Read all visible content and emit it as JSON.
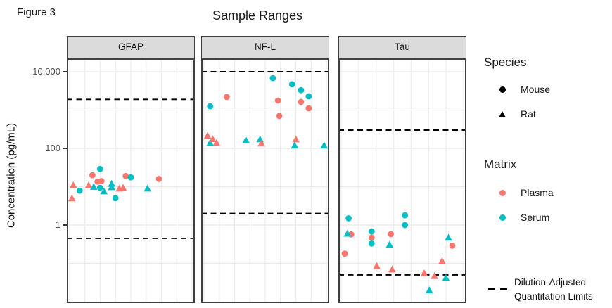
{
  "figure_label": "Figure 3",
  "title": "Sample Ranges",
  "y_axis": {
    "label": "Concentration (pg/mL)",
    "ticks": [
      {
        "label": "10,000",
        "value": 10000
      },
      {
        "label": "100",
        "value": 100
      },
      {
        "label": "1",
        "value": 1
      }
    ]
  },
  "colors": {
    "plasma": "#F8766D",
    "serum": "#00BFC4",
    "limit_line": "#000000",
    "strip_bg": "#DBDBDB",
    "panel_border": "#404040",
    "grid": "#E8E8E8"
  },
  "legend": {
    "species": {
      "title": "Species",
      "items": [
        {
          "label": "Mouse",
          "marker": "circle"
        },
        {
          "label": "Rat",
          "marker": "triangle"
        }
      ]
    },
    "matrix": {
      "title": "Matrix",
      "items": [
        {
          "label": "Plasma",
          "color": "#F8766D"
        },
        {
          "label": "Serum",
          "color": "#00BFC4"
        }
      ]
    },
    "limits": {
      "label_line1": "Dilution-Adjusted",
      "label_line2": "Quantitation Limits",
      "marker": "dashed-line"
    }
  },
  "chart_data": {
    "type": "scatter",
    "title": "Sample Ranges",
    "ylabel": "Concentration (pg/mL)",
    "y_scale": "log10",
    "ylim": [
      0.009,
      16000
    ],
    "x_axis": "unlabeled samples (jittered)",
    "grid": true,
    "legend_position": "right",
    "shape_by": {
      "Mouse": "circle",
      "Rat": "triangle"
    },
    "color_by": {
      "Plasma": "#F8766D",
      "Serum": "#00BFC4"
    },
    "facets": [
      {
        "label": "GFAP",
        "upper_limit": 1900,
        "lower_limit": 0.45,
        "points": [
          {
            "x": 0.04,
            "conc": 5.0,
            "species": "Rat",
            "matrix": "Plasma"
          },
          {
            "x": 0.05,
            "conc": 11,
            "species": "Rat",
            "matrix": "Plasma"
          },
          {
            "x": 0.1,
            "conc": 7.9,
            "species": "Mouse",
            "matrix": "Serum"
          },
          {
            "x": 0.17,
            "conc": 11,
            "species": "Rat",
            "matrix": "Plasma"
          },
          {
            "x": 0.2,
            "conc": 20,
            "species": "Mouse",
            "matrix": "Plasma"
          },
          {
            "x": 0.21,
            "conc": 10,
            "species": "Rat",
            "matrix": "Serum"
          },
          {
            "x": 0.24,
            "conc": 13.5,
            "species": "Mouse",
            "matrix": "Plasma"
          },
          {
            "x": 0.27,
            "conc": 14,
            "species": "Mouse",
            "matrix": "Plasma"
          },
          {
            "x": 0.26,
            "conc": 29,
            "species": "Mouse",
            "matrix": "Serum"
          },
          {
            "x": 0.26,
            "conc": 9.4,
            "species": "Mouse",
            "matrix": "Serum"
          },
          {
            "x": 0.29,
            "conc": 7.6,
            "species": "Rat",
            "matrix": "Serum"
          },
          {
            "x": 0.35,
            "conc": 12,
            "species": "Rat",
            "matrix": "Serum"
          },
          {
            "x": 0.35,
            "conc": 9.8,
            "species": "Rat",
            "matrix": "Serum"
          },
          {
            "x": 0.38,
            "conc": 5.0,
            "species": "Mouse",
            "matrix": "Serum"
          },
          {
            "x": 0.41,
            "conc": 9.0,
            "species": "Rat",
            "matrix": "Plasma"
          },
          {
            "x": 0.44,
            "conc": 9.4,
            "species": "Rat",
            "matrix": "Plasma"
          },
          {
            "x": 0.46,
            "conc": 19,
            "species": "Mouse",
            "matrix": "Plasma"
          },
          {
            "x": 0.5,
            "conc": 17.5,
            "species": "Mouse",
            "matrix": "Serum"
          },
          {
            "x": 0.63,
            "conc": 9.0,
            "species": "Rat",
            "matrix": "Serum"
          },
          {
            "x": 0.72,
            "conc": 16,
            "species": "Mouse",
            "matrix": "Plasma"
          }
        ]
      },
      {
        "label": "NF-L",
        "upper_limit": 10000,
        "lower_limit": 2.0,
        "points": [
          {
            "x": 0.07,
            "conc": 1260,
            "species": "Mouse",
            "matrix": "Serum"
          },
          {
            "x": 0.2,
            "conc": 2200,
            "species": "Mouse",
            "matrix": "Plasma"
          },
          {
            "x": 0.05,
            "conc": 215,
            "species": "Rat",
            "matrix": "Plasma"
          },
          {
            "x": 0.07,
            "conc": 140,
            "species": "Rat",
            "matrix": "Serum"
          },
          {
            "x": 0.09,
            "conc": 175,
            "species": "Rat",
            "matrix": "Plasma"
          },
          {
            "x": 0.12,
            "conc": 140,
            "species": "Rat",
            "matrix": "Plasma"
          },
          {
            "x": 0.35,
            "conc": 165,
            "species": "Rat",
            "matrix": "Serum"
          },
          {
            "x": 0.46,
            "conc": 173,
            "species": "Rat",
            "matrix": "Serum"
          },
          {
            "x": 0.47,
            "conc": 135,
            "species": "Rat",
            "matrix": "Plasma"
          },
          {
            "x": 0.56,
            "conc": 6800,
            "species": "Mouse",
            "matrix": "Serum"
          },
          {
            "x": 0.6,
            "conc": 1770,
            "species": "Mouse",
            "matrix": "Plasma"
          },
          {
            "x": 0.61,
            "conc": 700,
            "species": "Mouse",
            "matrix": "Plasma"
          },
          {
            "x": 0.71,
            "conc": 4700,
            "species": "Mouse",
            "matrix": "Serum"
          },
          {
            "x": 0.78,
            "conc": 3300,
            "species": "Mouse",
            "matrix": "Serum"
          },
          {
            "x": 0.78,
            "conc": 1630,
            "species": "Mouse",
            "matrix": "Plasma"
          },
          {
            "x": 0.84,
            "conc": 2280,
            "species": "Mouse",
            "matrix": "Serum"
          },
          {
            "x": 0.84,
            "conc": 1110,
            "species": "Mouse",
            "matrix": "Plasma"
          },
          {
            "x": 0.74,
            "conc": 173,
            "species": "Rat",
            "matrix": "Plasma"
          },
          {
            "x": 0.73,
            "conc": 120,
            "species": "Rat",
            "matrix": "Serum"
          },
          {
            "x": 0.96,
            "conc": 120,
            "species": "Rat",
            "matrix": "Serum"
          }
        ]
      },
      {
        "label": "Tau",
        "upper_limit": 300,
        "lower_limit": 0.05,
        "points": [
          {
            "x": 0.05,
            "conc": 0.18,
            "species": "Mouse",
            "matrix": "Plasma"
          },
          {
            "x": 0.08,
            "conc": 1.5,
            "species": "Mouse",
            "matrix": "Serum"
          },
          {
            "x": 0.1,
            "conc": 0.57,
            "species": "Mouse",
            "matrix": "Plasma"
          },
          {
            "x": 0.07,
            "conc": 0.6,
            "species": "Rat",
            "matrix": "Serum"
          },
          {
            "x": 0.26,
            "conc": 0.68,
            "species": "Mouse",
            "matrix": "Serum"
          },
          {
            "x": 0.26,
            "conc": 0.47,
            "species": "Mouse",
            "matrix": "Plasma"
          },
          {
            "x": 0.26,
            "conc": 0.33,
            "species": "Mouse",
            "matrix": "Serum"
          },
          {
            "x": 0.3,
            "conc": 0.086,
            "species": "Rat",
            "matrix": "Plasma"
          },
          {
            "x": 0.41,
            "conc": 0.58,
            "species": "Mouse",
            "matrix": "Plasma"
          },
          {
            "x": 0.4,
            "conc": 0.31,
            "species": "Rat",
            "matrix": "Serum"
          },
          {
            "x": 0.42,
            "conc": 0.07,
            "species": "Rat",
            "matrix": "Plasma"
          },
          {
            "x": 0.52,
            "conc": 1.8,
            "species": "Mouse",
            "matrix": "Serum"
          },
          {
            "x": 0.52,
            "conc": 1.0,
            "species": "Mouse",
            "matrix": "Serum"
          },
          {
            "x": 0.67,
            "conc": 0.056,
            "species": "Rat",
            "matrix": "Plasma"
          },
          {
            "x": 0.71,
            "conc": 0.02,
            "species": "Rat",
            "matrix": "Serum"
          },
          {
            "x": 0.75,
            "conc": 0.047,
            "species": "Rat",
            "matrix": "Plasma"
          },
          {
            "x": 0.81,
            "conc": 0.116,
            "species": "Rat",
            "matrix": "Plasma"
          },
          {
            "x": 0.86,
            "conc": 0.47,
            "species": "Rat",
            "matrix": "Serum"
          },
          {
            "x": 0.84,
            "conc": 0.042,
            "species": "Rat",
            "matrix": "Serum"
          },
          {
            "x": 0.89,
            "conc": 0.29,
            "species": "Mouse",
            "matrix": "Plasma"
          }
        ]
      }
    ]
  }
}
